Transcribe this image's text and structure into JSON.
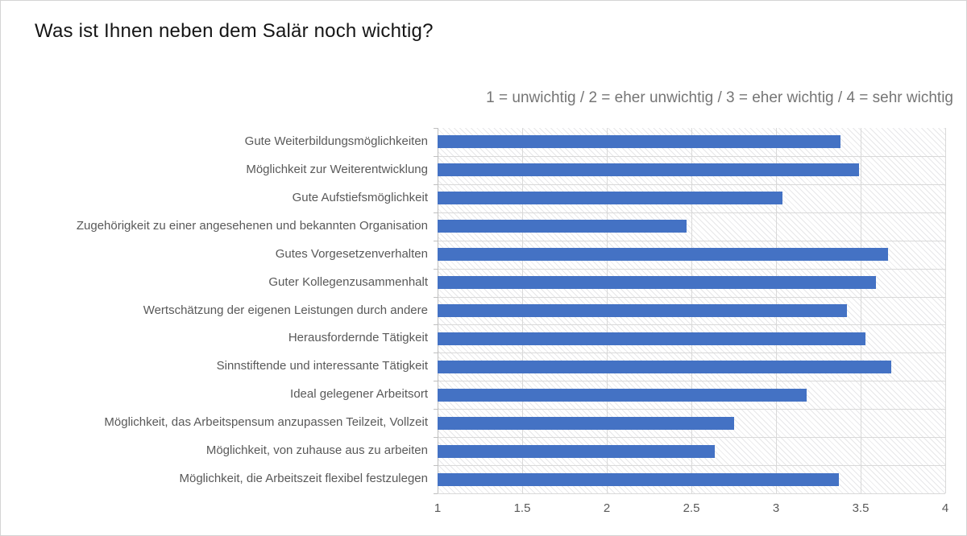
{
  "page": {
    "background": "#ffffff",
    "border_color": "#d4d4d4"
  },
  "chart_data": {
    "type": "bar",
    "orientation": "horizontal",
    "title": "Was ist Ihnen neben dem Salär noch wichtig?",
    "subtitle": "1 = unwichtig / 2 = eher unwichtig / 3 = eher wichtig / 4 = sehr wichtig",
    "categories": [
      "Gute Weiterbildungsmöglichkeiten",
      "Möglichkeit zur Weiterentwicklung",
      "Gute Aufstiefsmöglichkeit",
      "Zugehörigkeit zu einer angesehenen und bekannten Organisation",
      "Gutes Vorgesetzenverhalten",
      "Guter Kollegenzusammenhalt",
      "Wertschätzung der eigenen Leistungen durch andere",
      "Herausfordernde Tätigkeit",
      "Sinnstiftende und interessante Tätigkeit",
      "Ideal gelegener Arbeitsort",
      "Möglichkeit, das Arbeitspensum anzupassen Teilzeit, Vollzeit",
      "Möglichkeit, von zuhause aus zu arbeiten",
      "Möglichkeit, die Arbeitszeit flexibel festzulegen"
    ],
    "values": [
      3.38,
      3.49,
      3.04,
      2.47,
      3.66,
      3.59,
      3.42,
      3.53,
      3.68,
      3.18,
      2.75,
      2.64,
      3.37
    ],
    "xlim": [
      1,
      4
    ],
    "x_ticks": [
      1,
      1.5,
      2,
      2.5,
      3,
      3.5,
      4
    ],
    "x_tick_labels": [
      "1",
      "1.5",
      "2",
      "2.5",
      "3",
      "3.5",
      "4"
    ],
    "xlabel": "",
    "ylabel": "",
    "legend": "none",
    "grid": "on",
    "bar_color": "#4472c4",
    "gridline_color": "#d9d9d9",
    "axis_line_color": "#bfbfbf",
    "label_color": "#595959",
    "title_color": "#151515",
    "subtitle_color": "#757575",
    "plot_pattern": "light-diagonal-hatch"
  }
}
